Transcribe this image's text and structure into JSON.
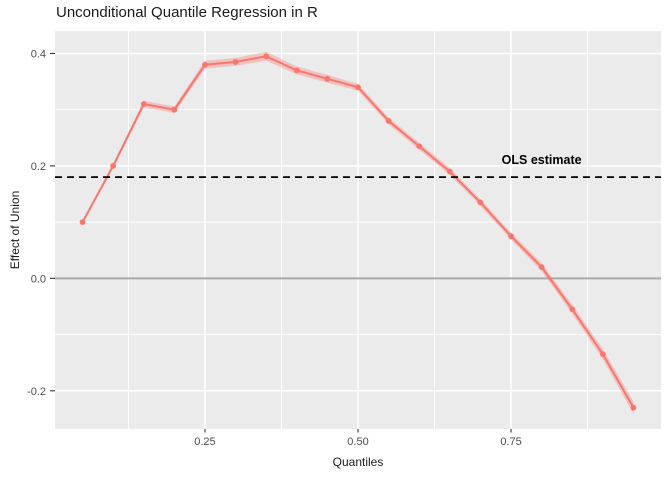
{
  "chart_data": {
    "type": "line",
    "title": "Unconditional Quantile Regression in R",
    "xlabel": "Quantiles",
    "ylabel": "Effect of Union",
    "x": [
      0.05,
      0.1,
      0.15,
      0.2,
      0.25,
      0.3,
      0.35,
      0.4,
      0.45,
      0.5,
      0.55,
      0.6,
      0.65,
      0.7,
      0.75,
      0.8,
      0.85,
      0.9,
      0.95
    ],
    "values": [
      0.1,
      0.2,
      0.31,
      0.3,
      0.38,
      0.385,
      0.395,
      0.37,
      0.355,
      0.34,
      0.28,
      0.235,
      0.19,
      0.135,
      0.075,
      0.02,
      -0.055,
      -0.135,
      -0.23
    ],
    "ci_halfwidth": [
      0.002,
      0.004,
      0.006,
      0.006,
      0.007,
      0.007,
      0.008,
      0.007,
      0.007,
      0.006,
      0.006,
      0.006,
      0.006,
      0.006,
      0.006,
      0.007,
      0.008,
      0.009,
      0.011
    ],
    "ols_line": {
      "value": 0.18,
      "label": "OLS estimate",
      "label_x": 0.8,
      "label_y": 0.21,
      "style": "dashed",
      "color": "#000000"
    },
    "zero_line": {
      "value": 0.0,
      "color": "#A9A9A9"
    },
    "xlim": [
      0.005,
      0.995
    ],
    "ylim": [
      -0.268,
      0.44
    ],
    "x_ticks": {
      "values": [
        0.25,
        0.5,
        0.75
      ],
      "labels": [
        "0.25",
        "0.50",
        "0.75"
      ]
    },
    "y_ticks": {
      "values": [
        0.4,
        0.2,
        0.0,
        -0.2
      ],
      "labels": [
        "0.4",
        "0.2",
        "0.0",
        "-0.2"
      ]
    },
    "x_minor": [
      0.125,
      0.375,
      0.625,
      0.875
    ],
    "y_minor": [
      0.3,
      0.1,
      -0.1
    ],
    "grid": true,
    "legend": false,
    "colors": {
      "line": "#F8766D",
      "point": "#F8766D",
      "ribbon": "#F8766D",
      "panel_bg": "#EBEBEB",
      "grid_major": "#FFFFFF",
      "grid_minor": "#FFFFFF",
      "tick_mark": "#333333",
      "tick_text": "#4D4D4D",
      "axis_title": "#1A1A1A",
      "title": "#1A1A1A",
      "background": "#FFFFFF"
    }
  }
}
